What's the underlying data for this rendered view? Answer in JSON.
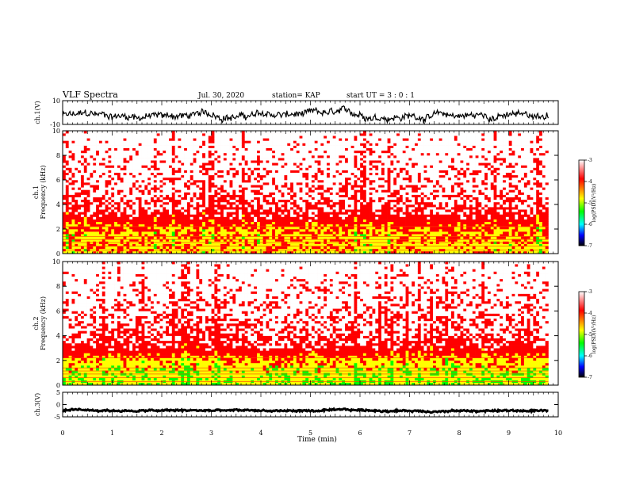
{
  "header": {
    "title": "VLF Spectra",
    "date": "Jul. 30, 2020",
    "station": "station= KAP",
    "start": "start UT =  3 : 0 : 1"
  },
  "chart_data": [
    {
      "type": "line",
      "panel": "ch1-waveform",
      "ylabel": "ch.1(V)",
      "ylim": [
        -10,
        10
      ],
      "yticks": [
        "10",
        "-10"
      ],
      "xlim": [
        0,
        10
      ],
      "data_end_min": 9.8,
      "description_values": {
        "mean_level": -2.5,
        "amplitude": 5
      }
    },
    {
      "type": "heatmap",
      "panel": "ch1-spectrogram",
      "ylabel": "ch.1",
      "ylabel2": "Frequency (kHz)",
      "ylim": [
        0,
        10
      ],
      "yticks": [
        "0",
        "2",
        "4",
        "6",
        "8",
        "10"
      ],
      "xlim": [
        0,
        10
      ],
      "data_end_min": 9.8,
      "colorbar": {
        "label": "log(PSD)(V²/Hz)",
        "range": [
          -7,
          -3
        ],
        "ticks": [
          "-3",
          "-4",
          "-5",
          "-6",
          "-7"
        ]
      },
      "band_profile": [
        {
          "freq_khz": 1.0,
          "level": -4.6
        },
        {
          "freq_khz": 2.0,
          "level": -4.4
        },
        {
          "freq_khz": 3.0,
          "level": -3.8
        },
        {
          "freq_khz": 4.0,
          "level": -3.5
        },
        {
          "freq_khz": 10.0,
          "level": -3.1
        }
      ]
    },
    {
      "type": "heatmap",
      "panel": "ch2-spectrogram",
      "ylabel": "ch.2",
      "ylabel2": "Frequency (kHz)",
      "ylim": [
        0,
        10
      ],
      "yticks": [
        "0",
        "2",
        "4",
        "6",
        "8",
        "10"
      ],
      "xlim": [
        0,
        10
      ],
      "data_end_min": 9.8,
      "colorbar": {
        "label": "log(PSD)(V²/Hz)",
        "range": [
          -7,
          -3
        ],
        "ticks": [
          "-3",
          "-4",
          "-5",
          "-6",
          "-7"
        ]
      },
      "band_profile": [
        {
          "freq_khz": 1.0,
          "level": -4.9
        },
        {
          "freq_khz": 2.0,
          "level": -4.5
        },
        {
          "freq_khz": 3.0,
          "level": -3.8
        },
        {
          "freq_khz": 4.0,
          "level": -3.5
        },
        {
          "freq_khz": 10.0,
          "level": -3.1
        }
      ]
    },
    {
      "type": "line",
      "panel": "ch3-waveform",
      "ylabel": "ch.3(V)",
      "ylim": [
        -5,
        5
      ],
      "yticks": [
        "5",
        "0",
        "-5"
      ],
      "xlim": [
        0,
        10
      ],
      "data_end_min": 9.8,
      "description_values": {
        "mean_level": -2.5,
        "amplitude": 0.6
      }
    }
  ],
  "xaxis": {
    "label": "Time (min)",
    "ticks": [
      "0",
      "1",
      "2",
      "3",
      "4",
      "5",
      "6",
      "7",
      "8",
      "9",
      "10"
    ]
  },
  "colors": {
    "spectrum": [
      "#000000",
      "#0000ff",
      "#00ffff",
      "#00ff00",
      "#ffff00",
      "#ff0000",
      "#ffffff"
    ]
  }
}
